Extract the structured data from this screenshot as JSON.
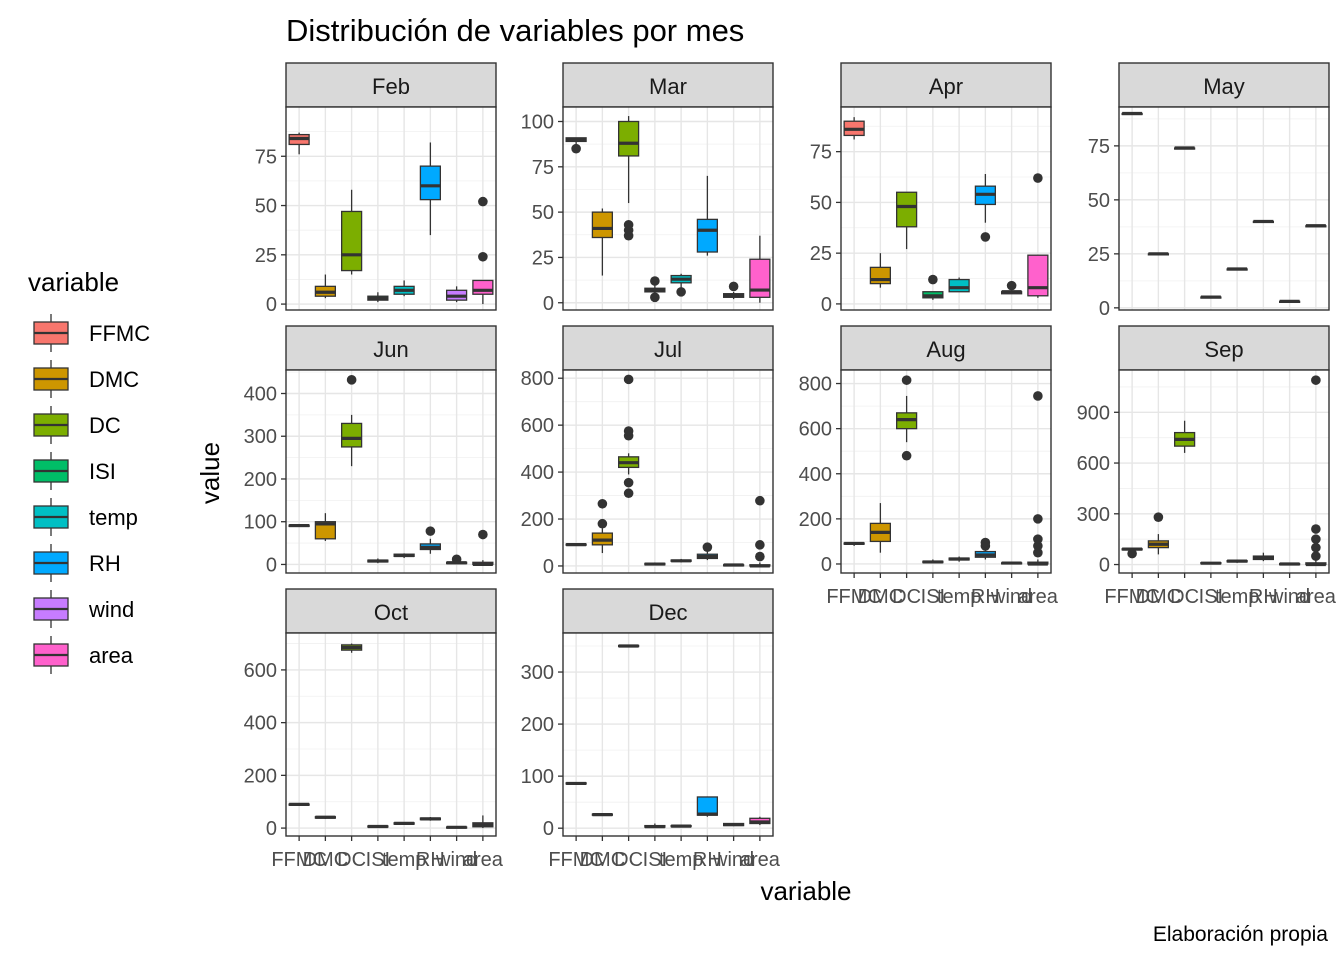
{
  "title": "Distribución de variables por mes",
  "caption": "Elaboración propia",
  "chart_data": {
    "type": "boxplot",
    "facet_by": "month",
    "xlabel": "variable",
    "ylabel": "value",
    "legend": {
      "title": "variable",
      "position": "left",
      "items": [
        {
          "name": "FFMC",
          "color": "#F8766D"
        },
        {
          "name": "DMC",
          "color": "#CD9600"
        },
        {
          "name": "DC",
          "color": "#7CAE00"
        },
        {
          "name": "ISI",
          "color": "#00BE67"
        },
        {
          "name": "temp",
          "color": "#00BFC4"
        },
        {
          "name": "RH",
          "color": "#00A9FF"
        },
        {
          "name": "wind",
          "color": "#C77CFF"
        },
        {
          "name": "area",
          "color": "#FF61CC"
        }
      ]
    },
    "categories": [
      "FFMC",
      "DMC",
      "DC",
      "ISI",
      "temp",
      "RH",
      "wind",
      "area"
    ],
    "grid": true,
    "scales": "free_y",
    "panels": [
      {
        "month": "Feb",
        "ylim": [
          -3,
          100
        ],
        "yticks": [
          "0",
          "25",
          "50",
          "75"
        ],
        "boxes": [
          {
            "var": "FFMC",
            "min": 76,
            "q1": 81,
            "median": 84,
            "q3": 86,
            "max": 87,
            "outliers": []
          },
          {
            "var": "DMC",
            "min": 3,
            "q1": 4,
            "median": 6,
            "q3": 9,
            "max": 15,
            "outliers": []
          },
          {
            "var": "DC",
            "min": 15,
            "q1": 17,
            "median": 25,
            "q3": 47,
            "max": 58,
            "outliers": []
          },
          {
            "var": "ISI",
            "min": 1,
            "q1": 2,
            "median": 3,
            "q3": 4,
            "max": 6,
            "outliers": []
          },
          {
            "var": "temp",
            "min": 4,
            "q1": 5,
            "median": 7,
            "q3": 9,
            "max": 12,
            "outliers": []
          },
          {
            "var": "RH",
            "min": 35,
            "q1": 53,
            "median": 60,
            "q3": 70,
            "max": 82,
            "outliers": []
          },
          {
            "var": "wind",
            "min": 1,
            "q1": 2,
            "median": 4,
            "q3": 7,
            "max": 9,
            "outliers": []
          },
          {
            "var": "area",
            "min": 0,
            "q1": 5,
            "median": 7,
            "q3": 12,
            "max": 12,
            "outliers": [
              24,
              52
            ]
          }
        ]
      },
      {
        "month": "Mar",
        "ylim": [
          -4,
          108
        ],
        "yticks": [
          "0",
          "25",
          "50",
          "75",
          "100"
        ],
        "boxes": [
          {
            "var": "FFMC",
            "min": 85,
            "q1": 89,
            "median": 90,
            "q3": 91,
            "max": 91,
            "outliers": [
              85
            ]
          },
          {
            "var": "DMC",
            "min": 15,
            "q1": 36,
            "median": 41,
            "q3": 50,
            "max": 52,
            "outliers": []
          },
          {
            "var": "DC",
            "min": 55,
            "q1": 81,
            "median": 88,
            "q3": 100,
            "max": 103,
            "outliers": [
              37,
              40,
              43
            ]
          },
          {
            "var": "ISI",
            "min": 4,
            "q1": 6,
            "median": 7,
            "q3": 8,
            "max": 10,
            "outliers": [
              3,
              12
            ]
          },
          {
            "var": "temp",
            "min": 8,
            "q1": 11,
            "median": 13,
            "q3": 15,
            "max": 16,
            "outliers": [
              6
            ]
          },
          {
            "var": "RH",
            "min": 26,
            "q1": 28,
            "median": 40,
            "q3": 46,
            "max": 70,
            "outliers": []
          },
          {
            "var": "wind",
            "min": 2,
            "q1": 3,
            "median": 4,
            "q3": 5,
            "max": 6,
            "outliers": [
              9
            ]
          },
          {
            "var": "area",
            "min": 0,
            "q1": 3,
            "median": 7,
            "q3": 24,
            "max": 37,
            "outliers": []
          }
        ]
      },
      {
        "month": "Apr",
        "ylim": [
          -3,
          97
        ],
        "yticks": [
          "0",
          "25",
          "50",
          "75"
        ],
        "boxes": [
          {
            "var": "FFMC",
            "min": 81,
            "q1": 83,
            "median": 86,
            "q3": 90,
            "max": 92,
            "outliers": []
          },
          {
            "var": "DMC",
            "min": 8,
            "q1": 10,
            "median": 12,
            "q3": 18,
            "max": 25,
            "outliers": []
          },
          {
            "var": "DC",
            "min": 27,
            "q1": 38,
            "median": 48,
            "q3": 55,
            "max": 55,
            "outliers": []
          },
          {
            "var": "ISI",
            "min": 2,
            "q1": 3,
            "median": 4,
            "q3": 6,
            "max": 6,
            "outliers": [
              12
            ]
          },
          {
            "var": "temp",
            "min": 6,
            "q1": 6,
            "median": 8,
            "q3": 12,
            "max": 13,
            "outliers": []
          },
          {
            "var": "RH",
            "min": 40,
            "q1": 49,
            "median": 54,
            "q3": 58,
            "max": 64,
            "outliers": [
              33
            ]
          },
          {
            "var": "wind",
            "min": 5,
            "q1": 5,
            "median": 6,
            "q3": 6,
            "max": 6,
            "outliers": [
              9
            ]
          },
          {
            "var": "area",
            "min": 3,
            "q1": 4,
            "median": 8,
            "q3": 24,
            "max": 24,
            "outliers": [
              62
            ]
          }
        ]
      },
      {
        "month": "May",
        "ylim": [
          -1,
          93
        ],
        "yticks": [
          "0",
          "25",
          "50",
          "75"
        ],
        "boxes": [
          {
            "var": "FFMC",
            "min": 90,
            "q1": 90,
            "median": 90,
            "q3": 90,
            "max": 90,
            "outliers": []
          },
          {
            "var": "DMC",
            "min": 25,
            "q1": 25,
            "median": 25,
            "q3": 25,
            "max": 25,
            "outliers": []
          },
          {
            "var": "DC",
            "min": 74,
            "q1": 74,
            "median": 74,
            "q3": 74,
            "max": 74,
            "outliers": []
          },
          {
            "var": "ISI",
            "min": 5,
            "q1": 5,
            "median": 5,
            "q3": 5,
            "max": 5,
            "outliers": []
          },
          {
            "var": "temp",
            "min": 18,
            "q1": 18,
            "median": 18,
            "q3": 18,
            "max": 18,
            "outliers": []
          },
          {
            "var": "RH",
            "min": 40,
            "q1": 40,
            "median": 40,
            "q3": 40,
            "max": 40,
            "outliers": []
          },
          {
            "var": "wind",
            "min": 3,
            "q1": 3,
            "median": 3,
            "q3": 3,
            "max": 3,
            "outliers": []
          },
          {
            "var": "area",
            "min": 38,
            "q1": 38,
            "median": 38,
            "q3": 38,
            "max": 38,
            "outliers": []
          }
        ]
      },
      {
        "month": "Jun",
        "ylim": [
          -20,
          455
        ],
        "yticks": [
          "0",
          "100",
          "200",
          "300",
          "400"
        ],
        "boxes": [
          {
            "var": "FFMC",
            "min": 88,
            "q1": 89,
            "median": 91,
            "q3": 92,
            "max": 94,
            "outliers": []
          },
          {
            "var": "DMC",
            "min": 55,
            "q1": 60,
            "median": 95,
            "q3": 100,
            "max": 120,
            "outliers": []
          },
          {
            "var": "DC",
            "min": 230,
            "q1": 275,
            "median": 295,
            "q3": 330,
            "max": 350,
            "outliers": [
              432
            ]
          },
          {
            "var": "ISI",
            "min": 3,
            "q1": 6,
            "median": 8,
            "q3": 10,
            "max": 14,
            "outliers": []
          },
          {
            "var": "temp",
            "min": 15,
            "q1": 19,
            "median": 21,
            "q3": 24,
            "max": 26,
            "outliers": []
          },
          {
            "var": "RH",
            "min": 25,
            "q1": 35,
            "median": 40,
            "q3": 48,
            "max": 60,
            "outliers": [
              78
            ]
          },
          {
            "var": "wind",
            "min": 1,
            "q1": 2,
            "median": 4,
            "q3": 5,
            "max": 7,
            "outliers": [
              12
            ]
          },
          {
            "var": "area",
            "min": 0,
            "q1": 0,
            "median": 0,
            "q3": 5,
            "max": 10,
            "outliers": [
              70
            ]
          }
        ]
      },
      {
        "month": "Jul",
        "ylim": [
          -30,
          835
        ],
        "yticks": [
          "0",
          "200",
          "400",
          "600",
          "800"
        ],
        "boxes": [
          {
            "var": "FFMC",
            "min": 86,
            "q1": 90,
            "median": 91,
            "q3": 93,
            "max": 95,
            "outliers": []
          },
          {
            "var": "DMC",
            "min": 55,
            "q1": 90,
            "median": 110,
            "q3": 140,
            "max": 160,
            "outliers": [
              180,
              265
            ]
          },
          {
            "var": "DC",
            "min": 390,
            "q1": 420,
            "median": 440,
            "q3": 465,
            "max": 480,
            "outliers": [
              310,
              355,
              555,
              575,
              795
            ]
          },
          {
            "var": "ISI",
            "min": 2,
            "q1": 5,
            "median": 8,
            "q3": 11,
            "max": 15,
            "outliers": []
          },
          {
            "var": "temp",
            "min": 15,
            "q1": 20,
            "median": 22,
            "q3": 25,
            "max": 30,
            "outliers": []
          },
          {
            "var": "RH",
            "min": 25,
            "q1": 32,
            "median": 40,
            "q3": 50,
            "max": 65,
            "outliers": [
              80
            ]
          },
          {
            "var": "wind",
            "min": 1,
            "q1": 2,
            "median": 4,
            "q3": 5,
            "max": 7,
            "outliers": []
          },
          {
            "var": "area",
            "min": 0,
            "q1": 0,
            "median": 0,
            "q3": 5,
            "max": 15,
            "outliers": [
              40,
              90,
              278
            ]
          }
        ]
      },
      {
        "month": "Aug",
        "ylim": [
          -40,
          860
        ],
        "yticks": [
          "0",
          "200",
          "400",
          "600",
          "800"
        ],
        "boxes": [
          {
            "var": "FFMC",
            "min": 80,
            "q1": 88,
            "median": 91,
            "q3": 93,
            "max": 96,
            "outliers": []
          },
          {
            "var": "DMC",
            "min": 50,
            "q1": 100,
            "median": 140,
            "q3": 180,
            "max": 270,
            "outliers": []
          },
          {
            "var": "DC",
            "min": 540,
            "q1": 600,
            "median": 640,
            "q3": 670,
            "max": 745,
            "outliers": [
              480,
              815
            ]
          },
          {
            "var": "ISI",
            "min": 2,
            "q1": 6,
            "median": 9,
            "q3": 12,
            "max": 20,
            "outliers": []
          },
          {
            "var": "temp",
            "min": 10,
            "q1": 18,
            "median": 22,
            "q3": 26,
            "max": 33,
            "outliers": []
          },
          {
            "var": "RH",
            "min": 20,
            "q1": 30,
            "median": 40,
            "q3": 55,
            "max": 75,
            "outliers": [
              80,
              95
            ]
          },
          {
            "var": "wind",
            "min": 1,
            "q1": 2,
            "median": 4,
            "q3": 5,
            "max": 8,
            "outliers": []
          },
          {
            "var": "area",
            "min": 0,
            "q1": 0,
            "median": 0,
            "q3": 8,
            "max": 20,
            "outliers": [
              50,
              80,
              110,
              200,
              745
            ]
          }
        ]
      },
      {
        "month": "Sep",
        "ylim": [
          -50,
          1150
        ],
        "yticks": [
          "0",
          "300",
          "600",
          "900"
        ],
        "boxes": [
          {
            "var": "FFMC",
            "min": 60,
            "q1": 88,
            "median": 91,
            "q3": 93,
            "max": 96,
            "outliers": [
              65
            ]
          },
          {
            "var": "DMC",
            "min": 60,
            "q1": 100,
            "median": 120,
            "q3": 140,
            "max": 180,
            "outliers": [
              280
            ]
          },
          {
            "var": "DC",
            "min": 660,
            "q1": 700,
            "median": 740,
            "q3": 780,
            "max": 850,
            "outliers": []
          },
          {
            "var": "ISI",
            "min": 1,
            "q1": 5,
            "median": 8,
            "q3": 11,
            "max": 15,
            "outliers": []
          },
          {
            "var": "temp",
            "min": 10,
            "q1": 16,
            "median": 20,
            "q3": 23,
            "max": 30,
            "outliers": []
          },
          {
            "var": "RH",
            "min": 20,
            "q1": 30,
            "median": 40,
            "q3": 50,
            "max": 70,
            "outliers": []
          },
          {
            "var": "wind",
            "min": 1,
            "q1": 2,
            "median": 3,
            "q3": 5,
            "max": 7,
            "outliers": []
          },
          {
            "var": "area",
            "min": 0,
            "q1": 0,
            "median": 0,
            "q3": 10,
            "max": 25,
            "outliers": [
              50,
              100,
              150,
              210,
              1090
            ]
          }
        ]
      },
      {
        "month": "Oct",
        "ylim": [
          -30,
          740
        ],
        "yticks": [
          "0",
          "200",
          "400",
          "600"
        ],
        "boxes": [
          {
            "var": "FFMC",
            "min": 84,
            "q1": 88,
            "median": 90,
            "q3": 91,
            "max": 92,
            "outliers": []
          },
          {
            "var": "DMC",
            "min": 35,
            "q1": 38,
            "median": 41,
            "q3": 43,
            "max": 45,
            "outliers": []
          },
          {
            "var": "DC",
            "min": 665,
            "q1": 675,
            "median": 685,
            "q3": 695,
            "max": 700,
            "outliers": []
          },
          {
            "var": "ISI",
            "min": 2,
            "q1": 4,
            "median": 6,
            "q3": 8,
            "max": 10,
            "outliers": []
          },
          {
            "var": "temp",
            "min": 12,
            "q1": 15,
            "median": 18,
            "q3": 20,
            "max": 22,
            "outliers": []
          },
          {
            "var": "RH",
            "min": 28,
            "q1": 32,
            "median": 35,
            "q3": 38,
            "max": 42,
            "outliers": []
          },
          {
            "var": "wind",
            "min": 1,
            "q1": 2,
            "median": 3,
            "q3": 4,
            "max": 5,
            "outliers": []
          },
          {
            "var": "area",
            "min": 0,
            "q1": 5,
            "median": 12,
            "q3": 20,
            "max": 48,
            "outliers": []
          }
        ]
      },
      {
        "month": "Dec",
        "ylim": [
          -15,
          375
        ],
        "yticks": [
          "0",
          "100",
          "200",
          "300"
        ],
        "boxes": [
          {
            "var": "FFMC",
            "min": 84,
            "q1": 85,
            "median": 86,
            "q3": 87,
            "max": 88,
            "outliers": []
          },
          {
            "var": "DMC",
            "min": 24,
            "q1": 25,
            "median": 26,
            "q3": 27,
            "max": 28,
            "outliers": []
          },
          {
            "var": "DC",
            "min": 348,
            "q1": 349,
            "median": 350,
            "q3": 351,
            "max": 352,
            "outliers": []
          },
          {
            "var": "ISI",
            "min": 1,
            "q1": 2,
            "median": 3,
            "q3": 5,
            "max": 9,
            "outliers": []
          },
          {
            "var": "temp",
            "min": 2,
            "q1": 3,
            "median": 4,
            "q3": 5,
            "max": 6,
            "outliers": []
          },
          {
            "var": "RH",
            "min": 22,
            "q1": 25,
            "median": 27,
            "q3": 60,
            "max": 61,
            "outliers": []
          },
          {
            "var": "wind",
            "min": 4,
            "q1": 5,
            "median": 7,
            "q3": 9,
            "max": 10,
            "outliers": []
          },
          {
            "var": "area",
            "min": 6,
            "q1": 9,
            "median": 12,
            "q3": 19,
            "max": 22,
            "outliers": []
          }
        ]
      }
    ]
  }
}
